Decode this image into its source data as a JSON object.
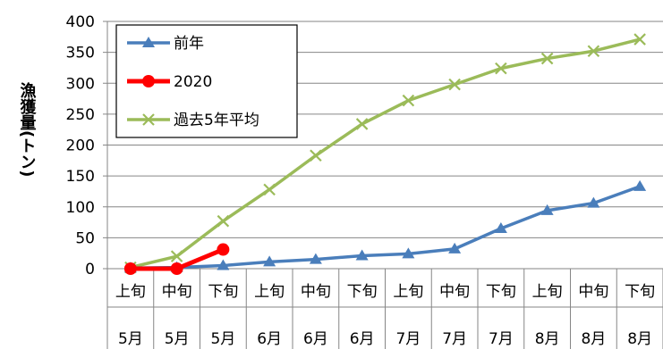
{
  "chart_data": {
    "type": "line",
    "ylabel": "漁獲量(トン)",
    "ylim": [
      0,
      400
    ],
    "yticks": [
      0,
      50,
      100,
      150,
      200,
      250,
      300,
      350,
      400
    ],
    "grid": "horizontal",
    "legend_position": "top-left",
    "x_categories": [
      {
        "period": "上旬",
        "month": "5月"
      },
      {
        "period": "中旬",
        "month": "5月"
      },
      {
        "period": "下旬",
        "month": "5月"
      },
      {
        "period": "上旬",
        "month": "6月"
      },
      {
        "period": "中旬",
        "month": "6月"
      },
      {
        "period": "下旬",
        "month": "6月"
      },
      {
        "period": "上旬",
        "month": "7月"
      },
      {
        "period": "中旬",
        "month": "7月"
      },
      {
        "period": "下旬",
        "month": "7月"
      },
      {
        "period": "上旬",
        "month": "8月"
      },
      {
        "period": "中旬",
        "month": "8月"
      },
      {
        "period": "下旬",
        "month": "8月"
      }
    ],
    "series": [
      {
        "name": "前年",
        "color": "#4a7ebb",
        "marker": "triangle",
        "values": [
          1,
          2,
          5,
          11,
          15,
          21,
          24,
          32,
          65,
          94,
          106,
          133
        ]
      },
      {
        "name": "2020",
        "color": "#ff0000",
        "marker": "circle",
        "values": [
          0,
          0,
          31
        ]
      },
      {
        "name": "過去5年平均",
        "color": "#9bbb59",
        "marker": "x",
        "values": [
          2,
          20,
          77,
          128,
          183,
          234,
          272,
          298,
          324,
          340,
          352,
          371
        ]
      }
    ]
  }
}
